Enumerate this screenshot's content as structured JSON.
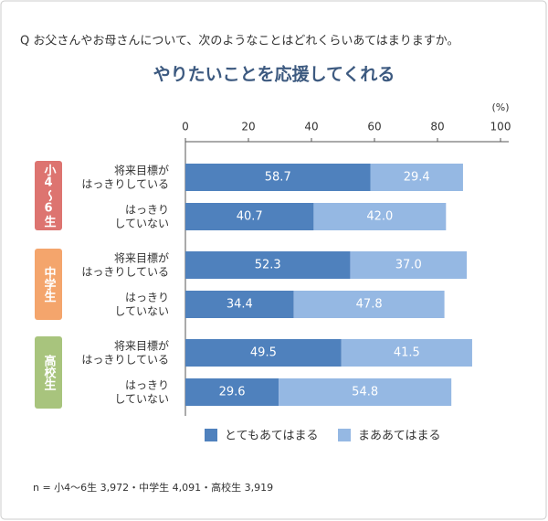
{
  "chart_data": {
    "type": "stacked-bar-horizontal",
    "question": "Q お父さんやお母さんについて、次のようなことはどれくらいあてはまりますか。",
    "title": "やりたいことを応援してくれる",
    "x_unit": "(%)",
    "categories": [
      "将来目標が\nはっきりしている",
      "はっきり\nしていない",
      "将来目標が\nはっきりしている",
      "はっきり\nしていない",
      "将来目標が\nはっきりしている",
      "はっきり\nしていない"
    ],
    "groups": [
      {
        "label": "小4～6生",
        "color": "#dd7470"
      },
      {
        "label": "中学生",
        "color": "#f4a56c"
      },
      {
        "label": "高校生",
        "color": "#a8c47d"
      }
    ],
    "series": [
      {
        "name": "とてもあてはまる",
        "color": "#4f81bd",
        "values": [
          58.7,
          40.7,
          52.3,
          34.4,
          49.5,
          29.6
        ],
        "value_labels": [
          "58.7",
          "40.7",
          "52.3",
          "34.4",
          "49.5",
          "29.6"
        ]
      },
      {
        "name": "まああてはまる",
        "color": "#95b8e3",
        "values": [
          29.4,
          42.0,
          37.0,
          47.8,
          41.5,
          54.8
        ],
        "value_labels": [
          "29.4",
          "42.0",
          "37.0",
          "47.8",
          "41.5",
          "54.8"
        ]
      }
    ],
    "xlim": [
      0,
      100
    ],
    "xticks": [
      0,
      20,
      40,
      60,
      80,
      100
    ],
    "note": "n = 小4～6生 3,972・中学生 4,091・高校生 3,919"
  }
}
